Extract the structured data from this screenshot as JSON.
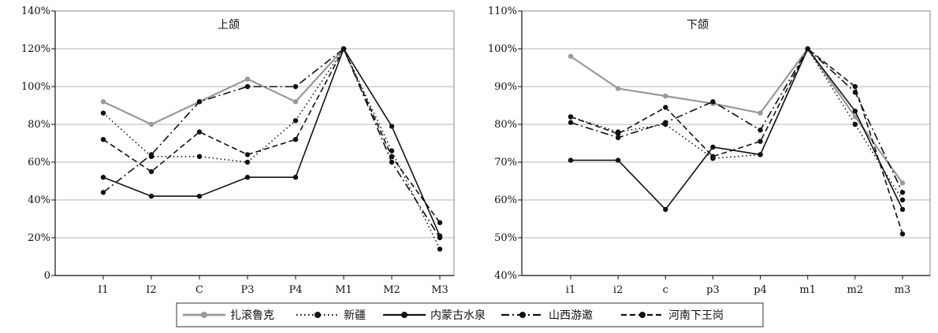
{
  "chart_data": [
    {
      "type": "line",
      "title": "上颌",
      "categories": [
        "I1",
        "I2",
        "C",
        "P3",
        "P4",
        "M1",
        "M2",
        "M3"
      ],
      "ylim": [
        0,
        140
      ],
      "yticks": [
        "0",
        "20%",
        "40%",
        "60%",
        "80%",
        "100%",
        "120%",
        "140%"
      ],
      "grid": true,
      "series": [
        {
          "name": "扎滚鲁克",
          "values": [
            92,
            80,
            92,
            104,
            92,
            120,
            null,
            null
          ]
        },
        {
          "name": "新疆",
          "values": [
            86,
            63,
            63,
            60,
            82,
            120,
            66,
            14
          ]
        },
        {
          "name": "内蒙古水泉",
          "values": [
            52,
            42,
            42,
            52,
            52,
            120,
            79,
            21
          ]
        },
        {
          "name": "山西游邀",
          "values": [
            44,
            64,
            92,
            100,
            100,
            120,
            60,
            20
          ]
        },
        {
          "name": "河南下王岗",
          "values": [
            72,
            55,
            76,
            64,
            72,
            120,
            63,
            28
          ]
        }
      ]
    },
    {
      "type": "line",
      "title": "下颌",
      "categories": [
        "i1",
        "i2",
        "c",
        "p3",
        "p4",
        "m1",
        "m2",
        "m3"
      ],
      "ylim": [
        40,
        110
      ],
      "yticks": [
        "40%",
        "50%",
        "60%",
        "70%",
        "80%",
        "90%",
        "100%",
        "110%"
      ],
      "grid": true,
      "series": [
        {
          "name": "扎滚鲁克",
          "values": [
            98,
            89.5,
            87.5,
            85.5,
            83,
            100,
            82,
            64.5
          ]
        },
        {
          "name": "新疆",
          "values": [
            82,
            78,
            80,
            71,
            72,
            100,
            80,
            60
          ]
        },
        {
          "name": "内蒙古水泉",
          "values": [
            70.5,
            70.5,
            57.5,
            74,
            72,
            100,
            83.5,
            57.5
          ]
        },
        {
          "name": "山西游邀",
          "values": [
            80.5,
            76.5,
            80.5,
            86,
            78.5,
            100,
            88.5,
            62
          ]
        },
        {
          "name": "河南下王岗",
          "values": [
            82,
            77.5,
            84.5,
            71.5,
            75.5,
            100,
            90,
            51
          ]
        }
      ]
    }
  ],
  "legend": {
    "items": [
      "扎滚鲁克",
      "新疆",
      "内蒙古水泉",
      "山西游邀",
      "河南下王岗"
    ],
    "placement": "bottom"
  }
}
